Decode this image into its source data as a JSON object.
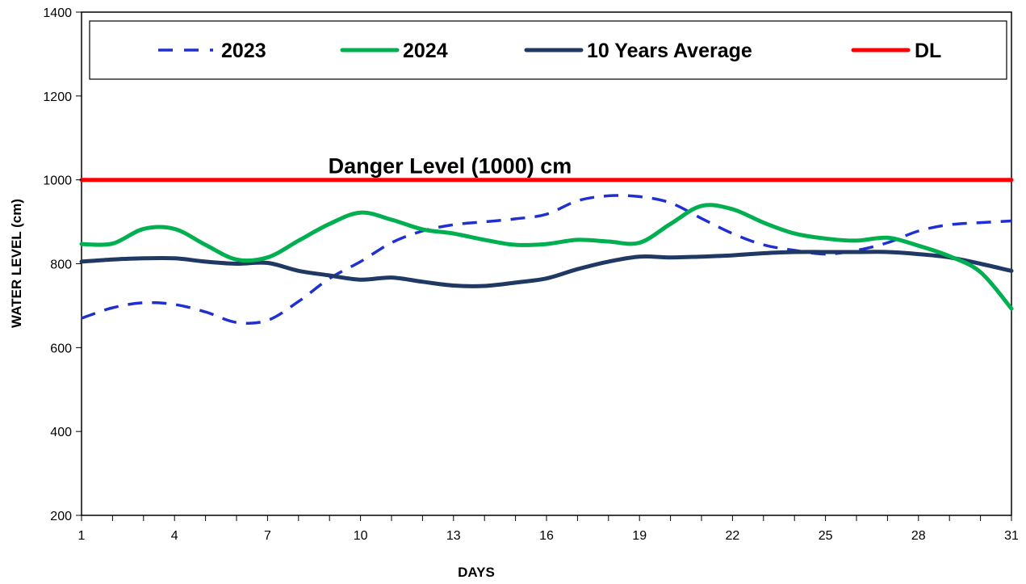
{
  "chart_data": {
    "type": "line",
    "xlabel": "DAYS",
    "ylabel": "WATER LEVEL (cm)",
    "xlim": [
      1,
      31
    ],
    "ylim": [
      200,
      1400
    ],
    "x_ticks": [
      1,
      4,
      7,
      10,
      13,
      16,
      19,
      22,
      25,
      28,
      31
    ],
    "y_ticks": [
      200,
      400,
      600,
      800,
      1000,
      1200,
      1400
    ],
    "grid": false,
    "legend_position": "top",
    "x": [
      1,
      2,
      3,
      4,
      5,
      6,
      7,
      8,
      9,
      10,
      11,
      12,
      13,
      14,
      15,
      16,
      17,
      18,
      19,
      20,
      21,
      22,
      23,
      24,
      25,
      26,
      27,
      28,
      29,
      30,
      31
    ],
    "series": [
      {
        "name": "2023",
        "style": "dashed",
        "color": "#1f2fd0",
        "values": [
          670,
          695,
          707,
          703,
          685,
          660,
          665,
          710,
          765,
          805,
          850,
          878,
          893,
          900,
          907,
          918,
          950,
          962,
          960,
          945,
          908,
          872,
          845,
          832,
          823,
          832,
          850,
          878,
          893,
          898,
          902
        ]
      },
      {
        "name": "2024",
        "style": "solid",
        "color": "#00b050",
        "values": [
          847,
          848,
          883,
          883,
          845,
          810,
          815,
          855,
          895,
          922,
          905,
          882,
          872,
          857,
          845,
          847,
          857,
          853,
          850,
          895,
          938,
          930,
          898,
          872,
          860,
          855,
          862,
          843,
          818,
          780,
          693
        ]
      },
      {
        "name": "10 Years Average",
        "style": "solid",
        "color": "#1f3864",
        "values": [
          805,
          810,
          813,
          813,
          805,
          800,
          802,
          783,
          772,
          762,
          767,
          757,
          748,
          747,
          755,
          765,
          787,
          805,
          817,
          815,
          817,
          820,
          825,
          828,
          828,
          828,
          828,
          823,
          815,
          800,
          783
        ]
      },
      {
        "name": "DL",
        "style": "solid",
        "color": "#ff0000",
        "values": [
          1000,
          1000,
          1000,
          1000,
          1000,
          1000,
          1000,
          1000,
          1000,
          1000,
          1000,
          1000,
          1000,
          1000,
          1000,
          1000,
          1000,
          1000,
          1000,
          1000,
          1000,
          1000,
          1000,
          1000,
          1000,
          1000,
          1000,
          1000,
          1000,
          1000,
          1000
        ]
      }
    ],
    "annotations": [
      {
        "text": "Danger Level (1000) cm",
        "x": 10,
        "y": 1000
      }
    ]
  }
}
